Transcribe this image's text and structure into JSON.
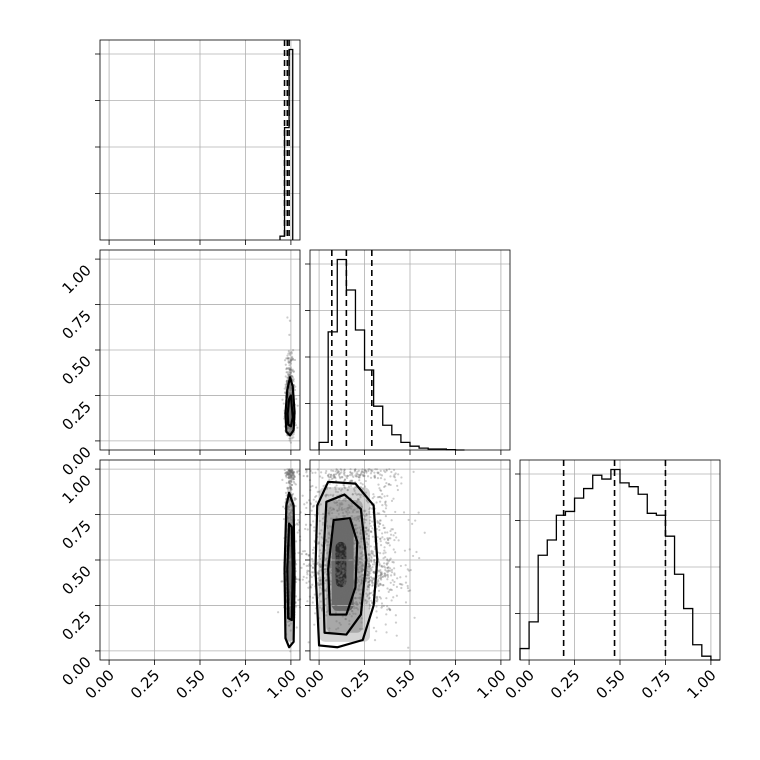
{
  "chart_data": {
    "type": "corner",
    "title": "",
    "grid": true,
    "tick_labels": [
      "0.00",
      "0.25",
      "0.50",
      "0.75",
      "1.00"
    ],
    "ylim_tick_labels": [
      "0.00",
      "0.25",
      "0.50",
      "0.75",
      "1.00"
    ],
    "colors": {
      "ink": "#000000",
      "grid": "#b0b0b0",
      "points": "#6e6e6e"
    },
    "diagonal": [
      {
        "param_index": 0,
        "xlim": [
          -0.05,
          1.05
        ],
        "bin_edges": [
          0.94,
          0.965,
          0.99,
          1.01
        ],
        "counts": [
          0.02,
          0.59,
          1.0
        ],
        "quantiles": [
          0.965,
          0.98,
          0.99
        ],
        "show_ytick_labels": false
      },
      {
        "param_index": 1,
        "xlim": [
          -0.05,
          1.05
        ],
        "bin_edges": [
          0.0,
          0.05,
          0.1,
          0.15,
          0.2,
          0.25,
          0.3,
          0.35,
          0.4,
          0.45,
          0.5,
          0.55,
          0.6,
          0.65,
          0.7,
          0.75,
          0.8
        ],
        "counts": [
          0.04,
          0.62,
          1.0,
          0.84,
          0.63,
          0.42,
          0.23,
          0.13,
          0.08,
          0.04,
          0.02,
          0.01,
          0.005,
          0.005,
          0.002,
          0.0
        ],
        "quantiles": [
          0.07,
          0.15,
          0.29
        ],
        "show_ytick_labels": false
      },
      {
        "param_index": 2,
        "xlim": [
          -0.05,
          1.05
        ],
        "bin_edges": [
          -0.05,
          0.0,
          0.05,
          0.1,
          0.15,
          0.2,
          0.25,
          0.3,
          0.35,
          0.4,
          0.45,
          0.5,
          0.55,
          0.6,
          0.65,
          0.7,
          0.75,
          0.8,
          0.85,
          0.9,
          0.95,
          1.0,
          1.05
        ],
        "counts": [
          0.06,
          0.2,
          0.55,
          0.63,
          0.76,
          0.78,
          0.85,
          0.9,
          0.97,
          0.95,
          1.0,
          0.93,
          0.91,
          0.87,
          0.77,
          0.76,
          0.65,
          0.45,
          0.27,
          0.08,
          0.02,
          0.0
        ],
        "quantiles": [
          0.19,
          0.47,
          0.75
        ],
        "show_ytick_labels": false
      }
    ],
    "panels_2d": [
      {
        "x_param": 0,
        "y_param": 1,
        "xlim": [
          -0.05,
          1.05
        ],
        "ylim": [
          -0.05,
          1.05
        ],
        "scatter": {
          "x_center": 0.995,
          "x_spread": 0.012,
          "y_center": 0.16,
          "y_spread": 0.12,
          "y_max": 0.78,
          "count": 700,
          "seed": 3
        },
        "contours": [
          [
            [
              0.975,
              0.05
            ],
            [
              0.995,
              0.03
            ],
            [
              1.015,
              0.06
            ],
            [
              1.02,
              0.16
            ],
            [
              1.01,
              0.3
            ],
            [
              0.995,
              0.35
            ],
            [
              0.98,
              0.28
            ],
            [
              0.97,
              0.15
            ]
          ],
          [
            [
              0.985,
              0.09
            ],
            [
              1.0,
              0.08
            ],
            [
              1.01,
              0.13
            ],
            [
              1.0,
              0.25
            ],
            [
              0.99,
              0.23
            ],
            [
              0.982,
              0.15
            ]
          ]
        ],
        "density_cells": [
          {
            "x": [
              0.97,
              1.01
            ],
            "y": [
              0.03,
              0.33
            ],
            "shade": "#c8c8c8"
          },
          {
            "x": [
              0.985,
              1.005
            ],
            "y": [
              0.08,
              0.25
            ],
            "shade": "#555555"
          }
        ]
      },
      {
        "x_param": 0,
        "y_param": 2,
        "xlim": [
          -0.05,
          1.05
        ],
        "ylim": [
          -0.05,
          1.05
        ],
        "scatter": {
          "x_center": 0.995,
          "x_spread": 0.013,
          "y_center": 0.48,
          "y_spread": 0.3,
          "y_max": 1.0,
          "count": 900,
          "seed": 7
        },
        "contours": [
          [
            [
              0.97,
              0.07
            ],
            [
              0.99,
              0.02
            ],
            [
              1.015,
              0.05
            ],
            [
              1.02,
              0.4
            ],
            [
              1.015,
              0.8
            ],
            [
              0.99,
              0.87
            ],
            [
              0.975,
              0.8
            ],
            [
              0.965,
              0.45
            ]
          ],
          [
            [
              0.985,
              0.18
            ],
            [
              1.005,
              0.17
            ],
            [
              1.01,
              0.45
            ],
            [
              1.005,
              0.68
            ],
            [
              0.99,
              0.7
            ],
            [
              0.98,
              0.45
            ]
          ]
        ],
        "density_cells": [
          {
            "x": [
              0.968,
              1.015
            ],
            "y": [
              0.05,
              0.85
            ],
            "shade": "#b8b8b8"
          },
          {
            "x": [
              0.985,
              1.005
            ],
            "y": [
              0.17,
              0.68
            ],
            "shade": "#4a4a4a"
          }
        ]
      },
      {
        "x_param": 1,
        "y_param": 2,
        "xlim": [
          -0.05,
          1.05
        ],
        "ylim": [
          -0.05,
          1.05
        ],
        "scatter": {
          "x_center": 0.17,
          "x_spread": 0.13,
          "y_center": 0.48,
          "y_spread": 0.28,
          "y_max": 1.0,
          "count": 1800,
          "seed": 11
        },
        "contours": [
          [
            [
              0.0,
              0.03
            ],
            [
              0.1,
              0.02
            ],
            [
              0.24,
              0.06
            ],
            [
              0.3,
              0.25
            ],
            [
              0.32,
              0.5
            ],
            [
              0.3,
              0.8
            ],
            [
              0.2,
              0.92
            ],
            [
              0.05,
              0.93
            ],
            [
              -0.01,
              0.8
            ],
            [
              -0.02,
              0.45
            ]
          ],
          [
            [
              0.03,
              0.1
            ],
            [
              0.15,
              0.09
            ],
            [
              0.23,
              0.2
            ],
            [
              0.26,
              0.5
            ],
            [
              0.23,
              0.78
            ],
            [
              0.14,
              0.86
            ],
            [
              0.04,
              0.82
            ],
            [
              0.02,
              0.45
            ]
          ],
          [
            [
              0.06,
              0.2
            ],
            [
              0.15,
              0.2
            ],
            [
              0.2,
              0.35
            ],
            [
              0.21,
              0.6
            ],
            [
              0.17,
              0.73
            ],
            [
              0.08,
              0.72
            ],
            [
              0.05,
              0.45
            ]
          ]
        ],
        "density_cells": [
          {
            "x": [
              0.0,
              0.28
            ],
            "y": [
              0.05,
              0.9
            ],
            "shade": "#d4d4d4"
          },
          {
            "x": [
              0.04,
              0.24
            ],
            "y": [
              0.1,
              0.83
            ],
            "shade": "#a8a8a8"
          },
          {
            "x": [
              0.07,
              0.19
            ],
            "y": [
              0.22,
              0.72
            ],
            "shade": "#6a6a6a"
          },
          {
            "x": [
              0.09,
              0.15
            ],
            "y": [
              0.35,
              0.6
            ],
            "shade": "#2a2a2a"
          }
        ]
      }
    ]
  }
}
